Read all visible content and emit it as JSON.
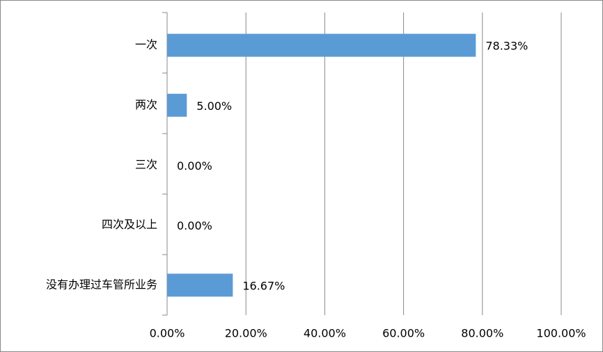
{
  "chart_data": {
    "type": "hbar",
    "categories": [
      "一次",
      "两次",
      "三次",
      "四次及以上",
      "没有办理过车管所业务"
    ],
    "values": [
      78.33,
      5.0,
      0.0,
      0.0,
      16.67
    ],
    "value_labels": [
      "78.33%",
      "5.00%",
      "0.00%",
      "0.00%",
      "16.67%"
    ],
    "color": "#5b9bd5",
    "xlim": [
      0,
      100
    ],
    "xticks": [
      {
        "value": 0,
        "label": "0.00%"
      },
      {
        "value": 20,
        "label": "20.00%"
      },
      {
        "value": 40,
        "label": "40.00%"
      },
      {
        "value": 60,
        "label": "60.00%"
      },
      {
        "value": 80,
        "label": "80.00%"
      },
      {
        "value": 100,
        "label": "100.00%"
      }
    ],
    "grid": true
  }
}
